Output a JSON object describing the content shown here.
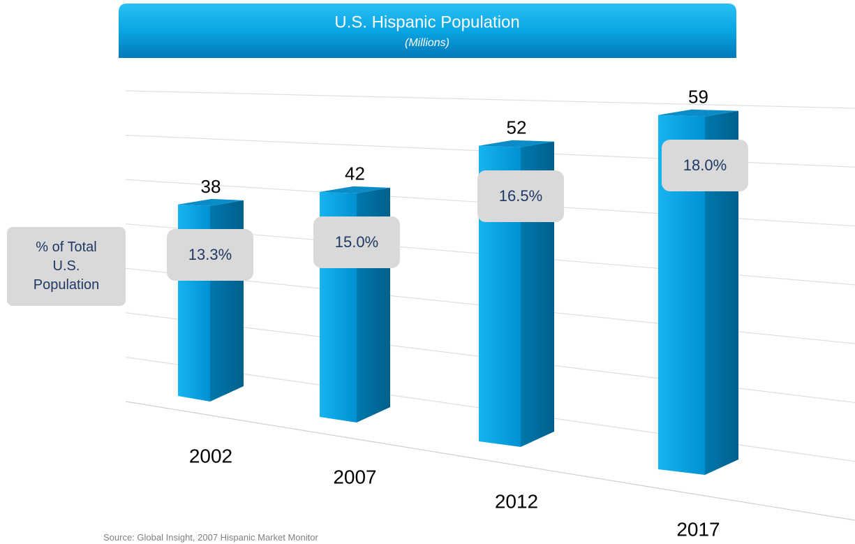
{
  "chart_data": {
    "type": "bar",
    "title": "U.S. Hispanic Population",
    "subtitle": "(Millions)",
    "categories": [
      "2002",
      "2007",
      "2012",
      "2017"
    ],
    "values": [
      38,
      42,
      52,
      59
    ],
    "color": "#00a6e6",
    "ylim": [
      0,
      70
    ],
    "grid": true,
    "annotation_title": "% of Total U.S. Population",
    "annotation_labels": [
      "13.3%",
      "15.0%",
      "16.5%",
      "18.0%"
    ]
  },
  "source": "Source: Global Insight, 2007 Hispanic Market Monitor"
}
